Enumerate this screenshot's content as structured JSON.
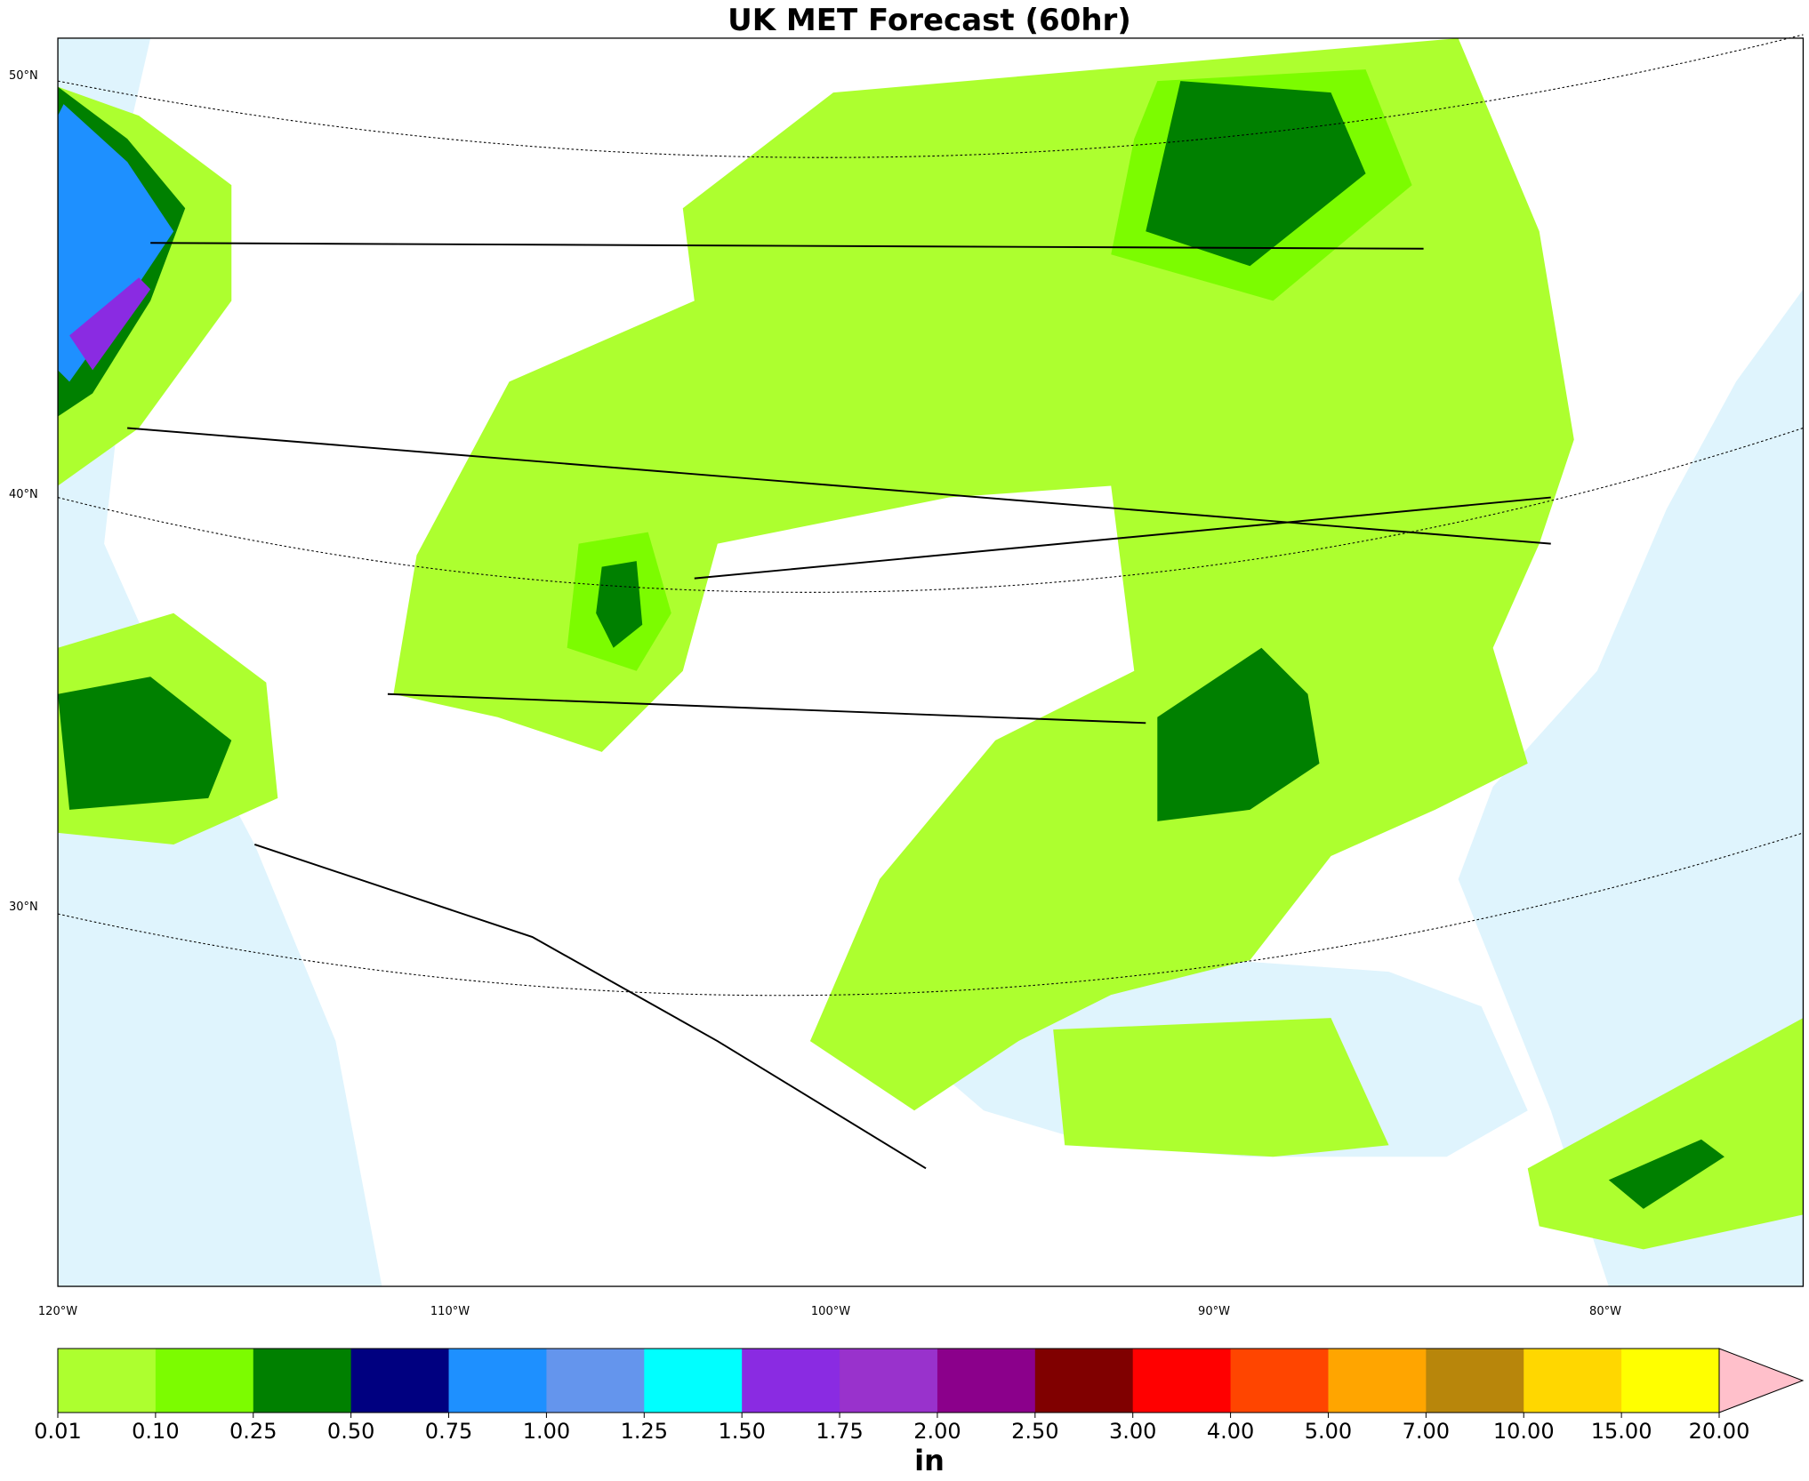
{
  "title": "UK MET Forecast (60hr)",
  "lat_labels": [
    "50°N",
    "40°N",
    "30°N"
  ],
  "lon_labels": [
    "120°W",
    "110°W",
    "100°W",
    "90°W",
    "80°W"
  ],
  "colorbar": {
    "unit": "in",
    "levels": [
      {
        "value": 0.01,
        "label": "0.01"
      },
      {
        "value": 0.1,
        "label": "0.10"
      },
      {
        "value": 0.25,
        "label": "0.25"
      },
      {
        "value": 0.5,
        "label": "0.50"
      },
      {
        "value": 0.75,
        "label": "0.75"
      },
      {
        "value": 1,
        "label": "1.00"
      },
      {
        "value": 1.25,
        "label": "1.25"
      },
      {
        "value": 1.5,
        "label": "1.50"
      },
      {
        "value": 1.75,
        "label": "1.75"
      },
      {
        "value": 2,
        "label": "2.00"
      },
      {
        "value": 2.5,
        "label": "2.50"
      },
      {
        "value": 3,
        "label": "3.00"
      },
      {
        "value": 4,
        "label": "4.00"
      },
      {
        "value": 5,
        "label": "5.00"
      },
      {
        "value": 7,
        "label": "7.00"
      },
      {
        "value": 10,
        "label": "10.00"
      },
      {
        "value": 15,
        "label": "15.00"
      },
      {
        "value": 20,
        "label": "20.00"
      }
    ],
    "colors": [
      "#adff2f",
      "#7cfc00",
      "#008000",
      "#000080",
      "#1e90ff",
      "#6495ed",
      "#00ffff",
      "#8a2be2",
      "#9932cc",
      "#8b008b",
      "#800000",
      "#ff0000",
      "#ff4500",
      "#ffa500",
      "#b8860b",
      "#ffd700",
      "#ffff00"
    ],
    "extend_color": "#ffc0cb"
  }
}
